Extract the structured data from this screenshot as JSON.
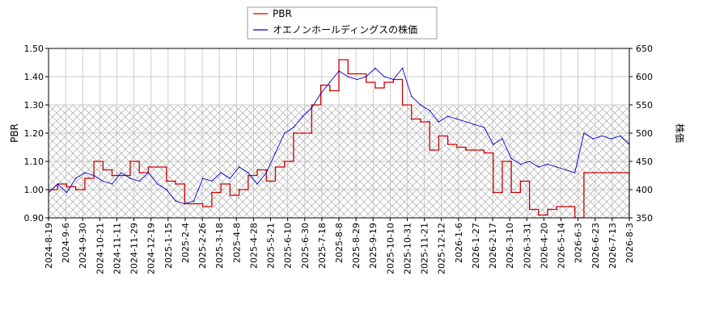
{
  "chart_data": {
    "type": "line",
    "x_ticks": [
      "2024-8-19",
      "2024-9-6",
      "2024-9-30",
      "2024-10-21",
      "2024-11-11",
      "2024-11-29",
      "2024-12-19",
      "2025-1-15",
      "2025-2-4",
      "2025-2-26",
      "2025-3-18",
      "2025-4-8",
      "2025-4-28",
      "2025-5-21",
      "2025-6-10",
      "2025-6-30",
      "2025-7-18",
      "2025-8-8",
      "2025-8-29",
      "2025-9-19",
      "2025-10-10",
      "2025-10-31",
      "2025-11-21",
      "2025-12-12",
      "2026-1-6",
      "2026-1-27",
      "2026-2-17",
      "2026-3-10",
      "2026-3-31",
      "2026-4-20",
      "2026-5-14",
      "2026-6-3",
      "2026-6-23",
      "2026-7-13",
      "2026-8-3"
    ],
    "left_axis": {
      "label": "PBR",
      "min": 0.9,
      "max": 1.5,
      "ticks": [
        "0.90",
        "1.00",
        "1.10",
        "1.20",
        "1.30",
        "1.40",
        "1.50"
      ]
    },
    "right_axis": {
      "label": "株価",
      "min": 350,
      "max": 650,
      "ticks": [
        "350",
        "400",
        "450",
        "500",
        "550",
        "600",
        "650"
      ]
    },
    "hatched_band": {
      "from": 0.9,
      "to": 1.3
    },
    "grid": true,
    "legend_position": "top-center",
    "series": [
      {
        "name": "PBR",
        "axis": "left",
        "color": "#cc0000",
        "values": [
          1.0,
          1.02,
          1.01,
          1.0,
          1.04,
          1.1,
          1.07,
          1.05,
          1.05,
          1.1,
          1.06,
          1.08,
          1.08,
          1.03,
          1.02,
          0.95,
          0.95,
          0.94,
          0.99,
          1.02,
          0.98,
          1.0,
          1.05,
          1.07,
          1.03,
          1.08,
          1.1,
          1.2,
          1.2,
          1.3,
          1.37,
          1.35,
          1.46,
          1.41,
          1.41,
          1.38,
          1.36,
          1.38,
          1.39,
          1.3,
          1.25,
          1.24,
          1.14,
          1.19,
          1.16,
          1.15,
          1.14,
          1.14,
          1.13,
          0.99,
          1.1,
          0.99,
          1.03,
          0.93,
          0.91,
          0.93,
          0.94,
          0.94,
          0.9,
          1.06,
          1.06,
          1.06,
          1.06,
          1.06,
          0.91
        ]
      },
      {
        "name": "オエノンホールディングスの株価",
        "axis": "right",
        "color": "#0000cc",
        "values": [
          395,
          410,
          395,
          420,
          430,
          425,
          415,
          410,
          430,
          420,
          415,
          430,
          410,
          400,
          380,
          375,
          380,
          420,
          415,
          430,
          420,
          440,
          430,
          410,
          430,
          465,
          500,
          510,
          530,
          545,
          570,
          590,
          610,
          600,
          595,
          600,
          615,
          600,
          595,
          615,
          565,
          550,
          540,
          520,
          530,
          525,
          520,
          515,
          510,
          480,
          490,
          455,
          445,
          450,
          440,
          445,
          440,
          435,
          430,
          500,
          490,
          495,
          490,
          495,
          480
        ]
      }
    ]
  }
}
